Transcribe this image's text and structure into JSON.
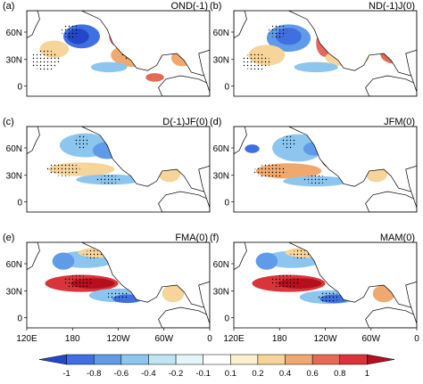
{
  "chart_data": {
    "type": "heatmap",
    "panels": [
      {
        "tag": "(a)",
        "title": "OND(-1)"
      },
      {
        "tag": "(b)",
        "title": "ND(-1)J(0)"
      },
      {
        "tag": "(c)",
        "title": "D(-1)JF(0)"
      },
      {
        "tag": "(d)",
        "title": "JFM(0)"
      },
      {
        "tag": "(e)",
        "title": "FMA(0)"
      },
      {
        "tag": "(f)",
        "title": "MAM(0)"
      }
    ],
    "lat_ticks": [
      "60N",
      "30N",
      "0"
    ],
    "lon_ticks": [
      "120E",
      "180",
      "120W",
      "60W",
      "0"
    ],
    "colorbar": {
      "levels": [
        "-1",
        "-0.8",
        "-0.6",
        "-0.4",
        "-0.2",
        "-0.1",
        "0.1",
        "0.2",
        "0.4",
        "0.6",
        "0.8",
        "1"
      ],
      "colors": [
        "#2447c9",
        "#3f6fe0",
        "#5f9be8",
        "#8cc6ef",
        "#bfe5f5",
        "#e6f5f9",
        "#ffffff",
        "#fbf0cf",
        "#f6d49a",
        "#f0a86e",
        "#e56a55",
        "#d8343a",
        "#b40e1f"
      ]
    }
  }
}
